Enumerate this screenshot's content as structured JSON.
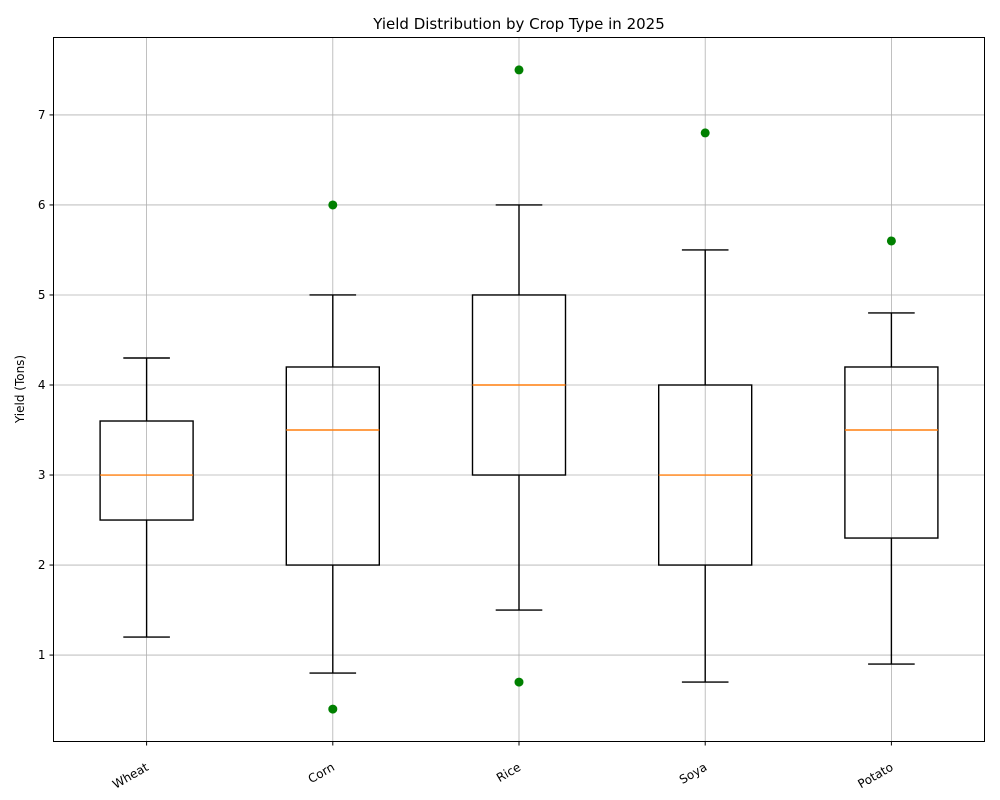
{
  "chart_data": {
    "type": "boxplot",
    "title": "Yield Distribution by Crop Type in 2025",
    "xlabel": "",
    "ylabel": "Yield (Tons)",
    "ylim": [
      0.04,
      7.86
    ],
    "yticks": [
      1,
      2,
      3,
      4,
      5,
      6,
      7
    ],
    "grid": true,
    "colors": {
      "box": "#000000",
      "median": "#ff7f0e",
      "outlier": "#008000",
      "grid": "#b0b0b0"
    },
    "categories": [
      "Wheat",
      "Corn",
      "Rice",
      "Soya",
      "Potato"
    ],
    "boxes": [
      {
        "category": "Wheat",
        "whisker_low": 1.2,
        "q1": 2.5,
        "median": 3.0,
        "q3": 3.6,
        "whisker_high": 4.3,
        "outliers": []
      },
      {
        "category": "Corn",
        "whisker_low": 0.8,
        "q1": 2.0,
        "median": 3.5,
        "q3": 4.2,
        "whisker_high": 5.0,
        "outliers": [
          0.4,
          6.0
        ]
      },
      {
        "category": "Rice",
        "whisker_low": 1.5,
        "q1": 3.0,
        "median": 4.0,
        "q3": 5.0,
        "whisker_high": 6.0,
        "outliers": [
          0.7,
          7.5
        ]
      },
      {
        "category": "Soya",
        "whisker_low": 0.7,
        "q1": 2.0,
        "median": 3.0,
        "q3": 4.0,
        "whisker_high": 5.5,
        "outliers": [
          6.8
        ]
      },
      {
        "category": "Potato",
        "whisker_low": 0.9,
        "q1": 2.3,
        "median": 3.5,
        "q3": 4.2,
        "whisker_high": 4.8,
        "outliers": [
          5.6
        ]
      }
    ]
  }
}
